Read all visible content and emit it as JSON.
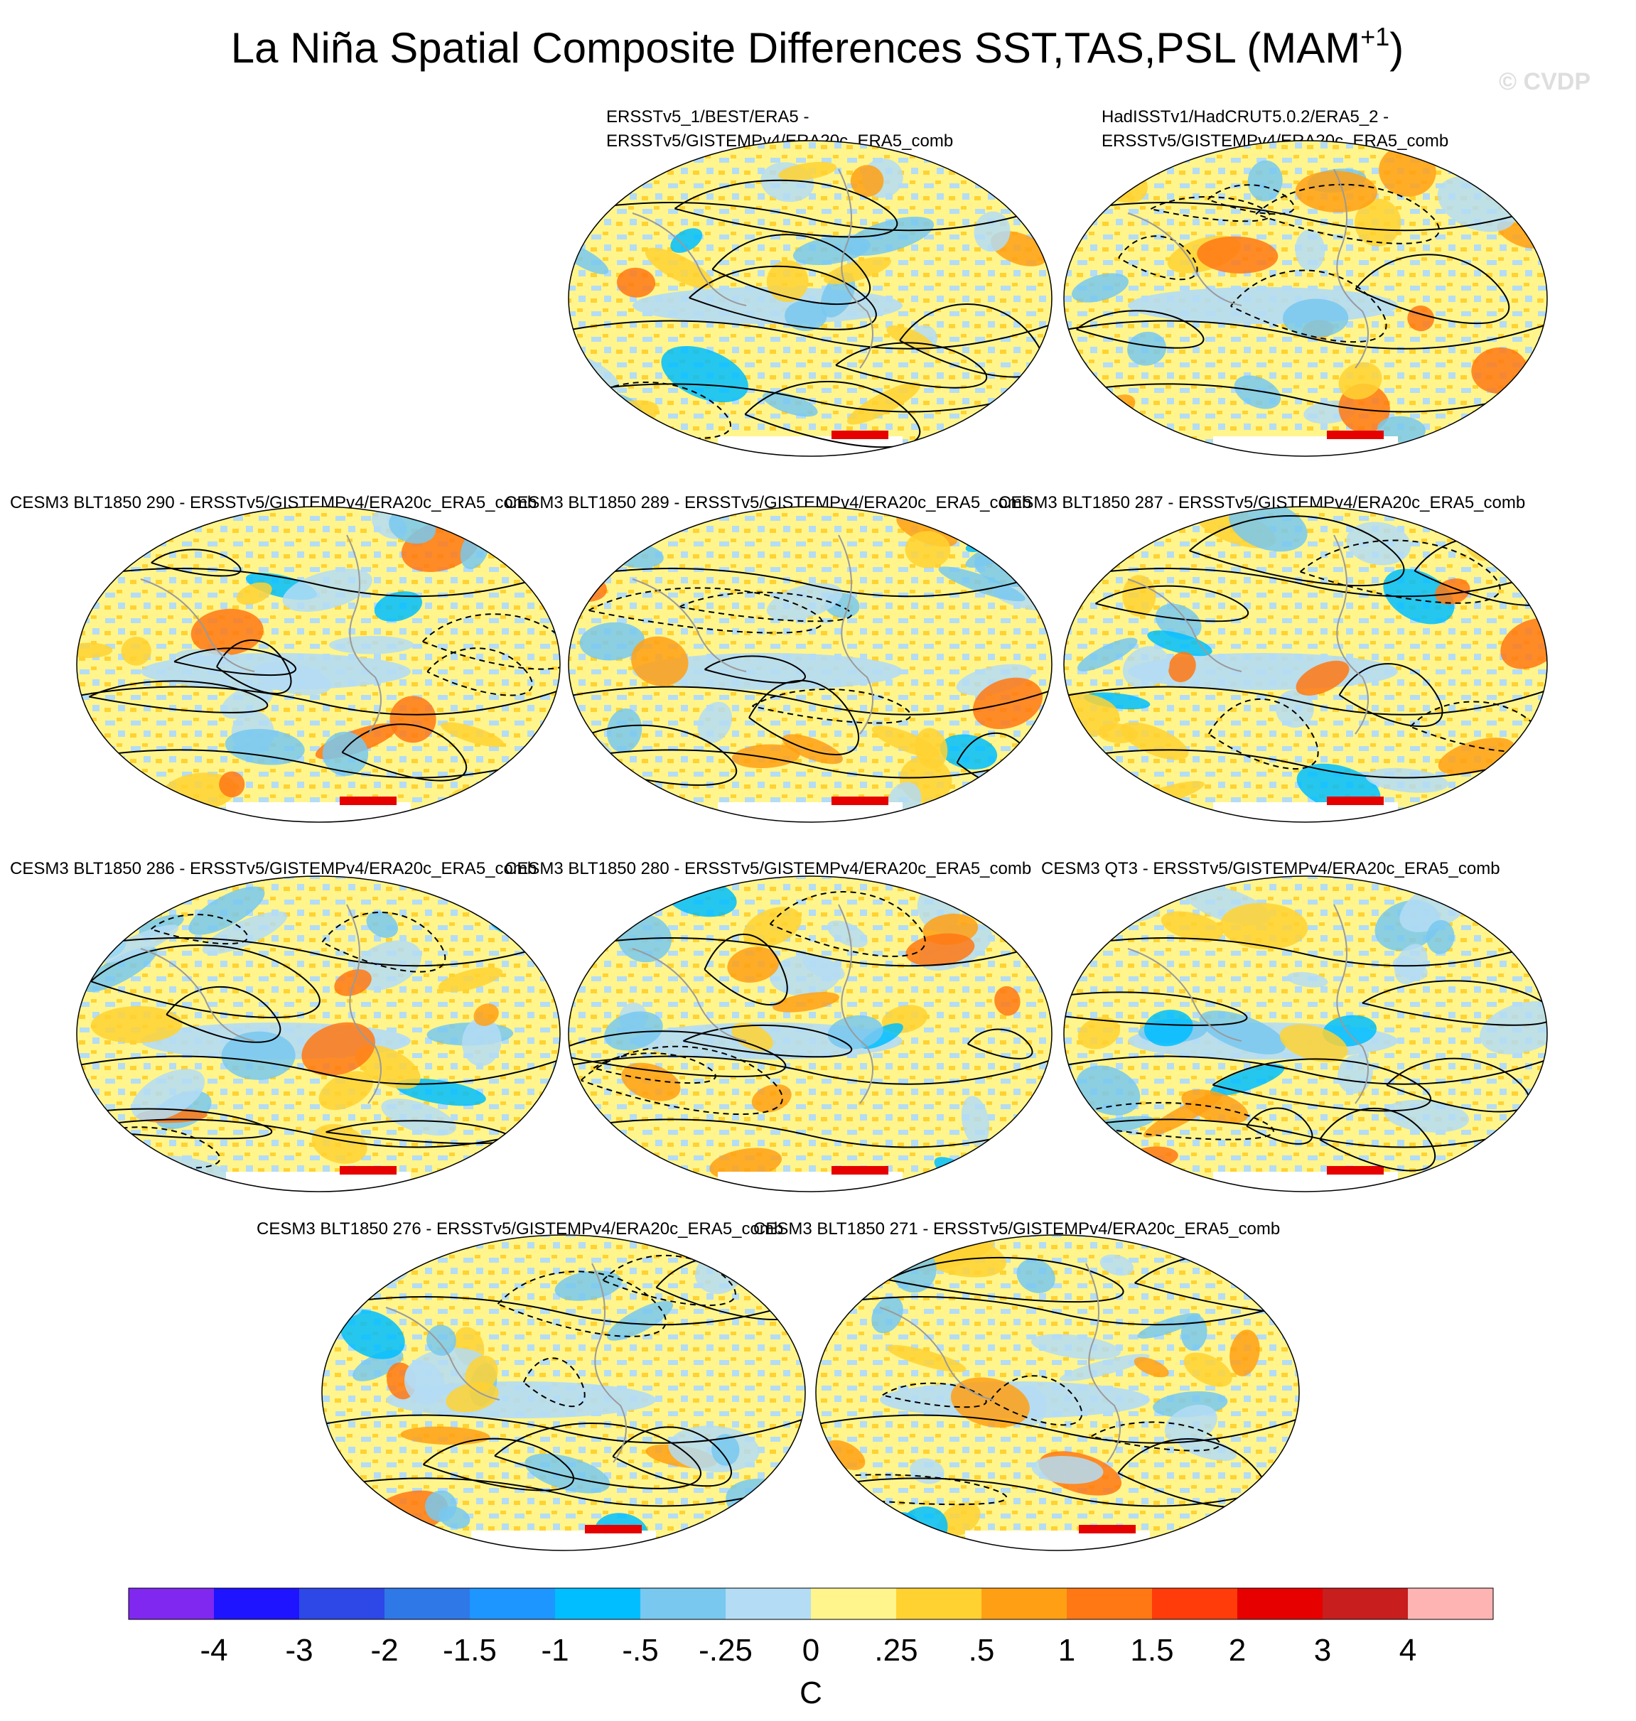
{
  "figure": {
    "title": "La Niña Spatial Composite Differences SST,TAS,PSL (MAM",
    "title_superscript": "+1",
    "title_close": ")",
    "watermark": "© CVDP"
  },
  "chart_data": {
    "type": "heatmap",
    "projection": "Robinson (global map)",
    "variable": "SST/TAS composite difference (shading) with PSL contours (solid positive, dashed negative)",
    "panels": [
      {
        "title_lines": [
          "ERSSTv5_1/BEST/ERA5 -",
          "ERSSTv5/GISTEMPv4/ERA20c_ERA5_comb"
        ]
      },
      {
        "title_lines": [
          "HadISSTv1/HadCRUT5.0.2/ERA5_2 -",
          "ERSSTv5/GISTEMPv4/ERA20c_ERA5_comb"
        ]
      },
      {
        "title_lines": [
          "CESM3 BLT1850 290 - ERSSTv5/GISTEMPv4/ERA20c_ERA5_comb"
        ]
      },
      {
        "title_lines": [
          "CESM3 BLT1850 289 - ERSSTv5/GISTEMPv4/ERA20c_ERA5_comb"
        ]
      },
      {
        "title_lines": [
          "CESM3 BLT1850 287 - ERSSTv5/GISTEMPv4/ERA20c_ERA5_comb"
        ]
      },
      {
        "title_lines": [
          "CESM3 BLT1850 286 - ERSSTv5/GISTEMPv4/ERA20c_ERA5_comb"
        ]
      },
      {
        "title_lines": [
          "CESM3 BLT1850 280 - ERSSTv5/GISTEMPv4/ERA20c_ERA5_comb"
        ]
      },
      {
        "title_lines": [
          "CESM3 QT3 - ERSSTv5/GISTEMPv4/ERA20c_ERA5_comb"
        ]
      },
      {
        "title_lines": [
          "CESM3 BLT1850 276 - ERSSTv5/GISTEMPv4/ERA20c_ERA5_comb"
        ]
      },
      {
        "title_lines": [
          "CESM3 BLT1850 271 - ERSSTv5/GISTEMPv4/ERA20c_ERA5_comb"
        ]
      }
    ],
    "colorbar": {
      "colors": [
        "#8028f0",
        "#1e14ff",
        "#2d48e6",
        "#2f78e8",
        "#1e96ff",
        "#00beff",
        "#78c8f0",
        "#b4dcf5",
        "#fff58c",
        "#ffd232",
        "#ffa014",
        "#ff7814",
        "#ff3c0a",
        "#e60000",
        "#c81e1e",
        "#ffb4b4"
      ],
      "labels": [
        "-4",
        "-3",
        "-2",
        "-1.5",
        "-1",
        "-.5",
        "-.25",
        "0",
        ".25",
        ".5",
        "1",
        "1.5",
        "2",
        "3",
        "4"
      ],
      "units": "C"
    }
  }
}
